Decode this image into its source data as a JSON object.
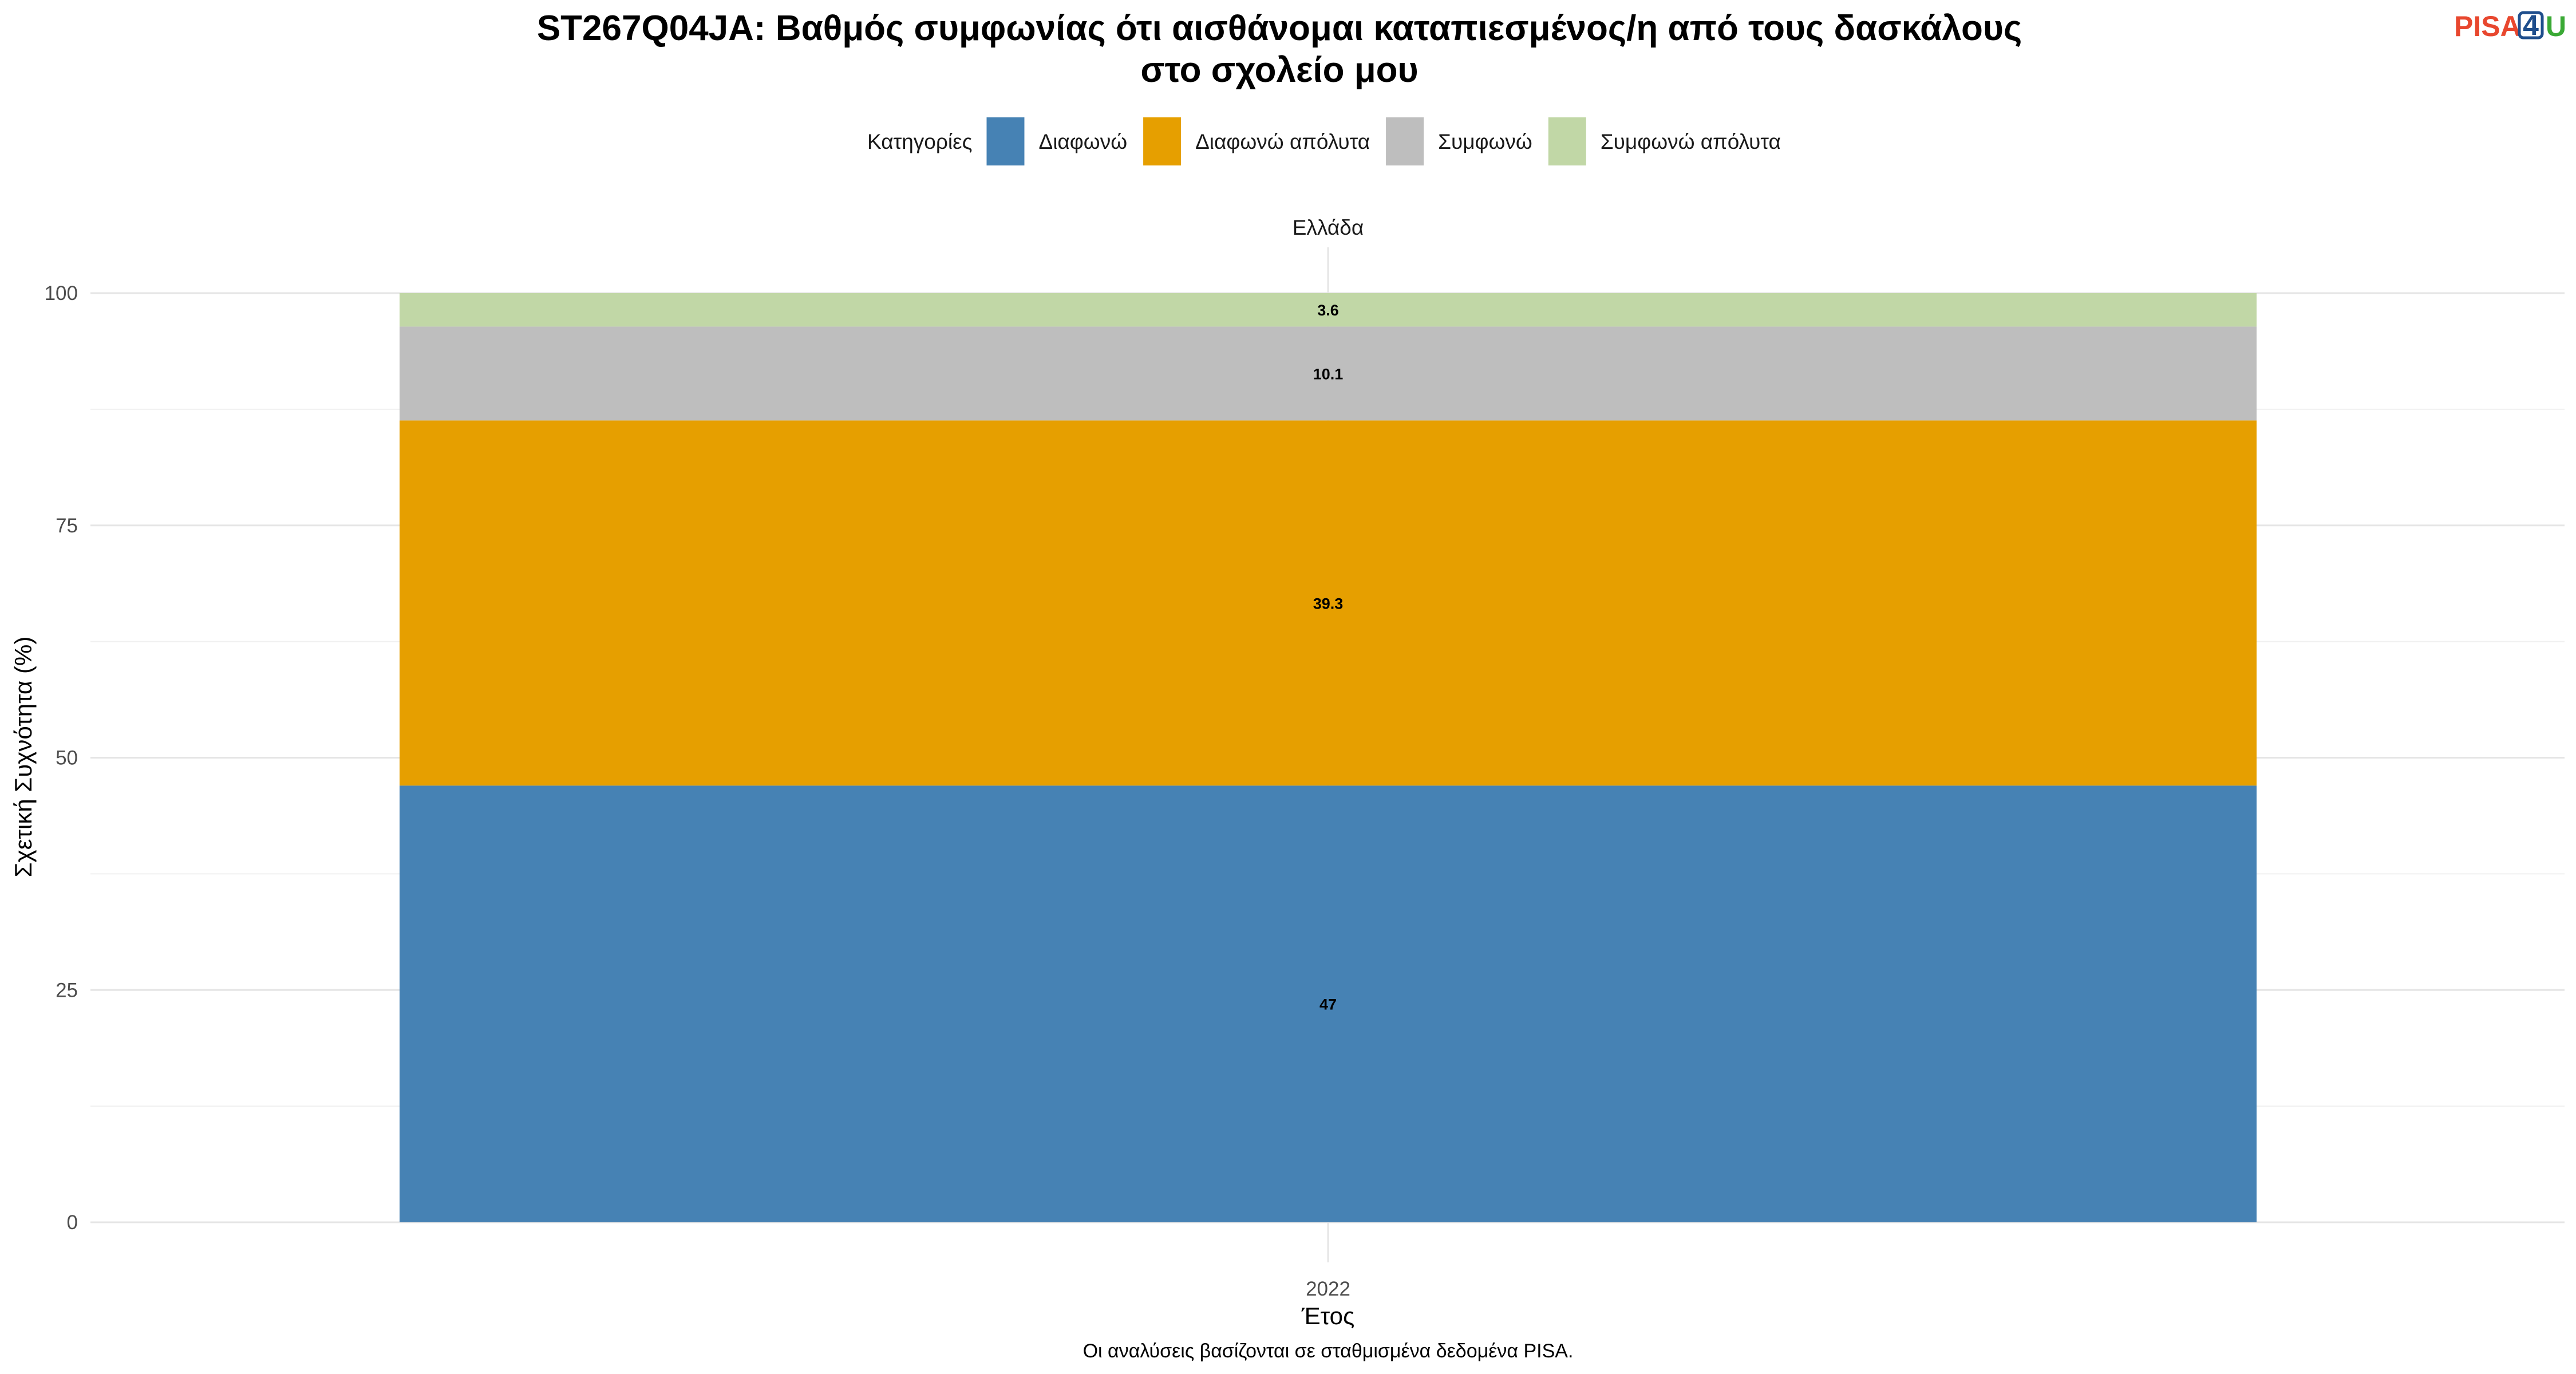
{
  "chart_data": {
    "type": "bar",
    "stacked": true,
    "title_lines": [
      "ST267Q04JA: Βαθμός συμφωνίας ότι αισθάνομαι καταπιεσμένος/η από τους δασκάλους",
      "στο σχολείο μου"
    ],
    "facet": "Ελλάδα",
    "categories": [
      "2022"
    ],
    "series": [
      {
        "name": "Διαφωνώ",
        "values": [
          47
        ],
        "labels": [
          "47"
        ],
        "color": "#4682B4"
      },
      {
        "name": "Διαφωνώ απόλυτα",
        "values": [
          39.3
        ],
        "labels": [
          "39.3"
        ],
        "color": "#E69F00"
      },
      {
        "name": "Συμφωνώ",
        "values": [
          10.1
        ],
        "labels": [
          "10.1"
        ],
        "color": "#BEBEBE"
      },
      {
        "name": "Συμφωνώ απόλυτα",
        "values": [
          3.6
        ],
        "labels": [
          "3.6"
        ],
        "color": "#C1D7A6"
      }
    ],
    "xlabel": "Έτος",
    "ylabel": "Σχετική Συχνότητα (%)",
    "ylim": [
      0,
      100
    ],
    "yticks": [
      0,
      25,
      50,
      75,
      100
    ],
    "grid": true,
    "legend": {
      "title": "Κατηγορίες",
      "position": "top"
    },
    "caption": "Οι αναλύσεις βασίζονται σε σταθμισμένα δεδομένα PISA."
  },
  "logo": {
    "part1": "PISA",
    "part2": "4",
    "part3": "U",
    "colors": {
      "part1": "#E8472E",
      "part2": "#1F4E8C",
      "part3": "#3AA935"
    }
  }
}
